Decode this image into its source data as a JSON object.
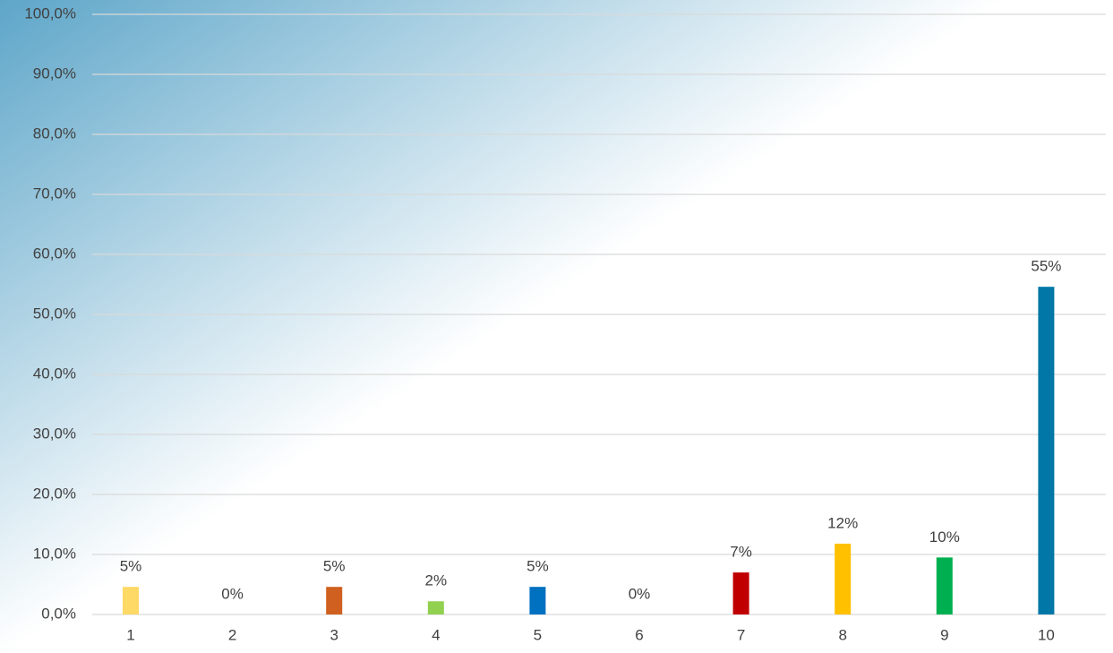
{
  "chart_data": {
    "type": "bar",
    "categories": [
      "1",
      "2",
      "3",
      "4",
      "5",
      "6",
      "7",
      "8",
      "9",
      "10"
    ],
    "values": [
      4.6,
      0,
      4.6,
      2.2,
      4.6,
      0,
      7.0,
      11.8,
      9.5,
      54.6
    ],
    "value_labels": [
      "5%",
      "0%",
      "5%",
      "2%",
      "5%",
      "0%",
      "7%",
      "12%",
      "10%",
      "55%"
    ],
    "colors": [
      "#ffd966",
      "#a5a5a5",
      "#d0601f",
      "#92d050",
      "#0070c0",
      "#7f7f7f",
      "#c00000",
      "#ffc000",
      "#00b050",
      "#0077a6"
    ],
    "ylim": [
      0,
      100
    ],
    "yticks": [
      {
        "value": 0,
        "label": "0,0%"
      },
      {
        "value": 10,
        "label": "10,0%"
      },
      {
        "value": 20,
        "label": "20,0%"
      },
      {
        "value": 30,
        "label": "30,0%"
      },
      {
        "value": 40,
        "label": "40,0%"
      },
      {
        "value": 50,
        "label": "50,0%"
      },
      {
        "value": 60,
        "label": "60,0%"
      },
      {
        "value": 70,
        "label": "70,0%"
      },
      {
        "value": 80,
        "label": "80,0%"
      },
      {
        "value": 90,
        "label": "90,0%"
      },
      {
        "value": 100,
        "label": "100,0%"
      }
    ],
    "grid": true
  }
}
